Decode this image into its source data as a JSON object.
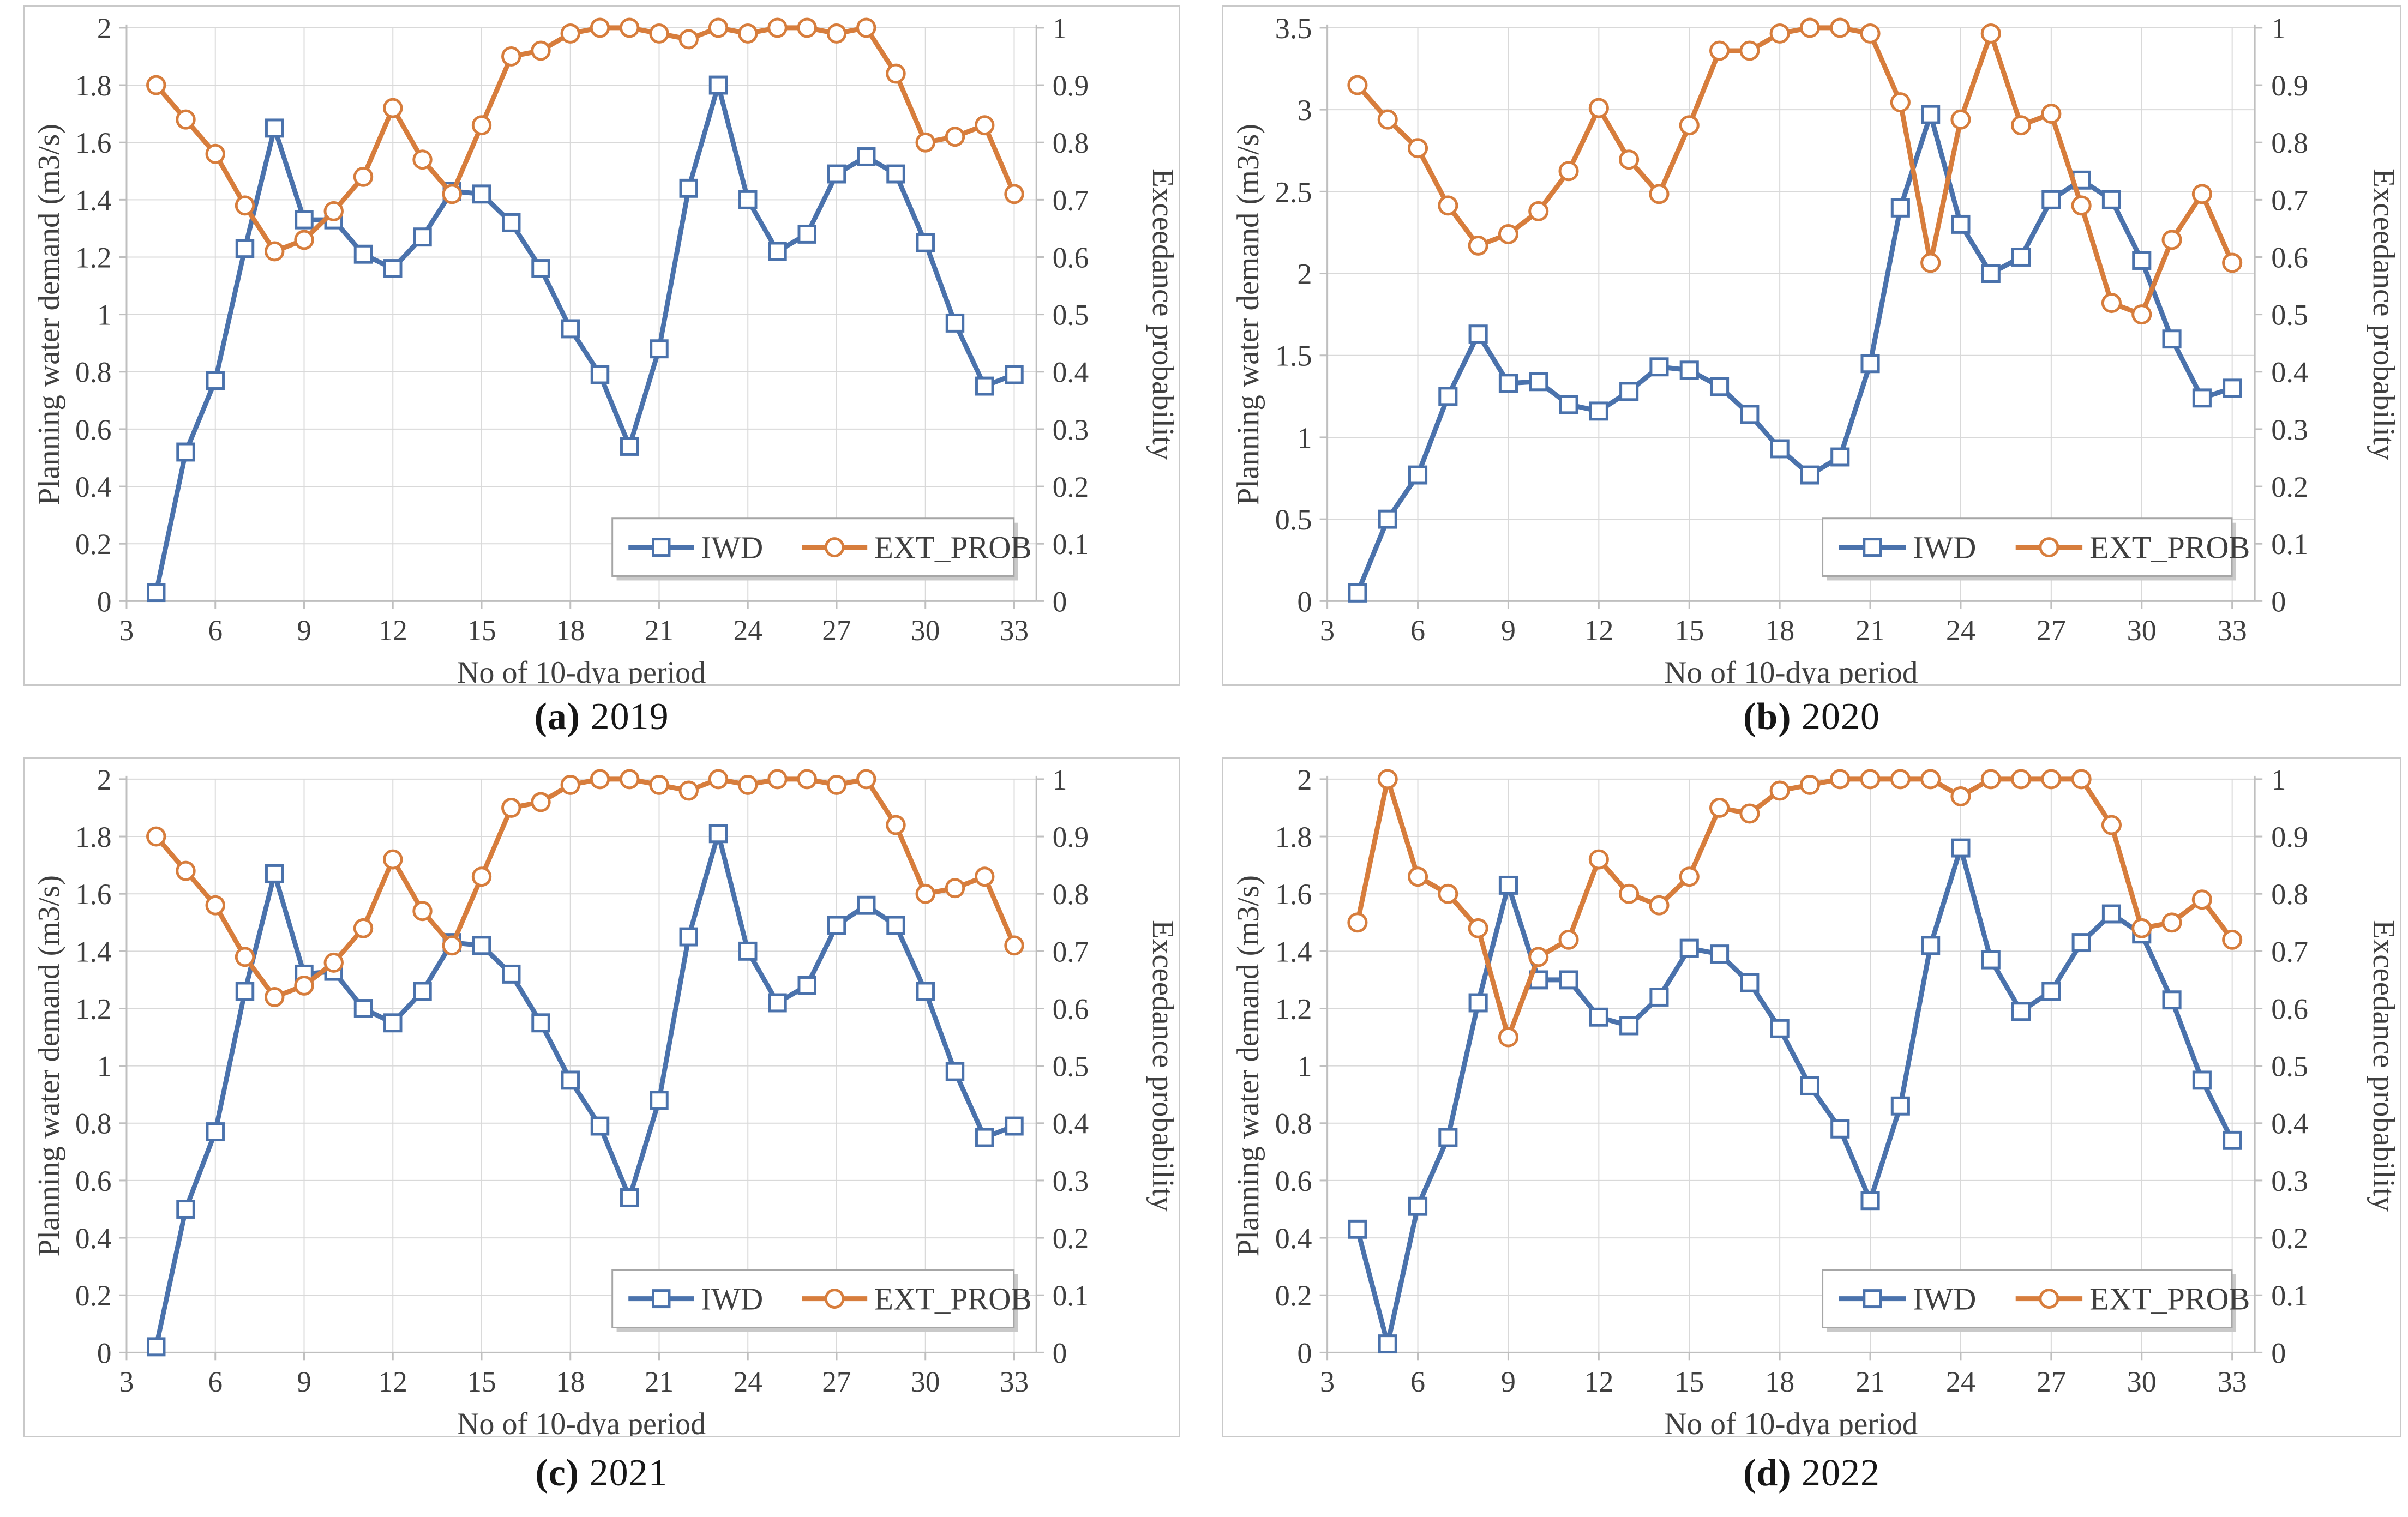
{
  "figure": {
    "background": "#ffffff",
    "grid_color": "#d9d9d9",
    "axis_color": "#bfbfbf",
    "text_color": "#3f3f3f",
    "legend_border_color": "#a6a6a6"
  },
  "chart_data": [
    {
      "id": "a",
      "type": "line",
      "caption_label": "(a)",
      "caption_year": "2019",
      "xlabel": "No of 10-dya period",
      "ylabel_left": "Planning water demand (m3/s)",
      "ylabel_right": "Exceedance probability",
      "x_min": 3,
      "x_max": 33,
      "x_plot_max": 33.75,
      "x_ticks": [
        3,
        6,
        9,
        12,
        15,
        18,
        21,
        24,
        27,
        30,
        33
      ],
      "y_left_max": 2,
      "y_left_ticks": [
        "0",
        "0.2",
        "0.4",
        "0.6",
        "0.8",
        "1",
        "1.2",
        "1.4",
        "1.6",
        "1.8",
        "2"
      ],
      "y_right_max": 1,
      "y_right_ticks": [
        "0",
        "0.1",
        "0.2",
        "0.3",
        "0.4",
        "0.5",
        "0.6",
        "0.7",
        "0.8",
        "0.9",
        "1"
      ],
      "grid": true,
      "legend_position": "inside-bottom-center",
      "x": [
        4,
        5,
        6,
        7,
        8,
        9,
        10,
        11,
        12,
        13,
        14,
        15,
        16,
        17,
        18,
        19,
        20,
        21,
        22,
        23,
        24,
        25,
        26,
        27,
        28,
        29,
        30,
        31,
        32,
        33
      ],
      "series": [
        {
          "name": "IWD",
          "axis": "left",
          "color": "#4a72ac",
          "marker": "square",
          "values": [
            0.03,
            0.52,
            0.77,
            1.23,
            1.65,
            1.33,
            1.33,
            1.21,
            1.16,
            1.27,
            1.43,
            1.42,
            1.32,
            1.16,
            0.95,
            0.79,
            0.54,
            0.88,
            1.44,
            1.8,
            1.4,
            1.22,
            1.28,
            1.49,
            1.55,
            1.49,
            1.25,
            0.97,
            0.75,
            0.79
          ]
        },
        {
          "name": "EXT_PROB",
          "axis": "right",
          "color": "#d77d3c",
          "marker": "circle",
          "values": [
            0.9,
            0.84,
            0.78,
            0.69,
            0.61,
            0.63,
            0.68,
            0.74,
            0.86,
            0.77,
            0.71,
            0.83,
            0.95,
            0.96,
            0.99,
            1.0,
            1.0,
            0.99,
            0.98,
            1.0,
            0.99,
            1.0,
            1.0,
            0.99,
            1.0,
            0.92,
            0.8,
            0.81,
            0.83,
            0.71
          ]
        }
      ]
    },
    {
      "id": "b",
      "type": "line",
      "caption_label": "(b)",
      "caption_year": "2020",
      "xlabel": "No of 10-dya period",
      "ylabel_left": "Planning water demand (m3/s)",
      "ylabel_right": "Exceedance probability",
      "x_min": 3,
      "x_max": 33,
      "x_plot_max": 33.75,
      "x_ticks": [
        3,
        6,
        9,
        12,
        15,
        18,
        21,
        24,
        27,
        30,
        33
      ],
      "y_left_max": 3.5,
      "y_left_ticks": [
        "0",
        "0.5",
        "1",
        "1.5",
        "2",
        "2.5",
        "3",
        "3.5"
      ],
      "y_right_max": 1,
      "y_right_ticks": [
        "0",
        "0.1",
        "0.2",
        "0.3",
        "0.4",
        "0.5",
        "0.6",
        "0.7",
        "0.8",
        "0.9",
        "1"
      ],
      "grid": true,
      "legend_position": "inside-bottom-center",
      "x": [
        4,
        5,
        6,
        7,
        8,
        9,
        10,
        11,
        12,
        13,
        14,
        15,
        16,
        17,
        18,
        19,
        20,
        21,
        22,
        23,
        24,
        25,
        26,
        27,
        28,
        29,
        30,
        31,
        32,
        33
      ],
      "series": [
        {
          "name": "IWD",
          "axis": "left",
          "color": "#4a72ac",
          "marker": "square",
          "values": [
            0.05,
            0.5,
            0.77,
            1.25,
            1.63,
            1.33,
            1.34,
            1.2,
            1.16,
            1.28,
            1.43,
            1.41,
            1.31,
            1.14,
            0.93,
            0.77,
            0.88,
            1.45,
            2.4,
            2.97,
            2.3,
            2.0,
            2.1,
            2.45,
            2.57,
            2.45,
            2.08,
            1.6,
            1.24,
            1.3
          ]
        },
        {
          "name": "EXT_PROB",
          "axis": "right",
          "color": "#d77d3c",
          "marker": "circle",
          "values": [
            0.9,
            0.84,
            0.79,
            0.69,
            0.62,
            0.64,
            0.68,
            0.75,
            0.86,
            0.77,
            0.71,
            0.83,
            0.96,
            0.96,
            0.99,
            1.0,
            1.0,
            0.99,
            0.87,
            0.59,
            0.84,
            0.99,
            0.83,
            0.85,
            0.69,
            0.52,
            0.5,
            0.63,
            0.71,
            0.59
          ]
        }
      ]
    },
    {
      "id": "c",
      "type": "line",
      "caption_label": "(c)",
      "caption_year": "2021",
      "xlabel": "No of 10-dya period",
      "ylabel_left": "Planning water demand (m3/s)",
      "ylabel_right": "Exceedance probability",
      "x_min": 3,
      "x_max": 33,
      "x_plot_max": 33.75,
      "x_ticks": [
        3,
        6,
        9,
        12,
        15,
        18,
        21,
        24,
        27,
        30,
        33
      ],
      "y_left_max": 2,
      "y_left_ticks": [
        "0",
        "0.2",
        "0.4",
        "0.6",
        "0.8",
        "1",
        "1.2",
        "1.4",
        "1.6",
        "1.8",
        "2"
      ],
      "y_right_max": 1,
      "y_right_ticks": [
        "0",
        "0.1",
        "0.2",
        "0.3",
        "0.4",
        "0.5",
        "0.6",
        "0.7",
        "0.8",
        "0.9",
        "1"
      ],
      "grid": true,
      "legend_position": "inside-bottom-center",
      "x": [
        4,
        5,
        6,
        7,
        8,
        9,
        10,
        11,
        12,
        13,
        14,
        15,
        16,
        17,
        18,
        19,
        20,
        21,
        22,
        23,
        24,
        25,
        26,
        27,
        28,
        29,
        30,
        31,
        32,
        33
      ],
      "series": [
        {
          "name": "IWD",
          "axis": "left",
          "color": "#4a72ac",
          "marker": "square",
          "values": [
            0.02,
            0.5,
            0.77,
            1.26,
            1.67,
            1.32,
            1.33,
            1.2,
            1.15,
            1.26,
            1.43,
            1.42,
            1.32,
            1.15,
            0.95,
            0.79,
            0.54,
            0.88,
            1.45,
            1.81,
            1.4,
            1.22,
            1.28,
            1.49,
            1.56,
            1.49,
            1.26,
            0.98,
            0.75,
            0.79
          ]
        },
        {
          "name": "EXT_PROB",
          "axis": "right",
          "color": "#d77d3c",
          "marker": "circle",
          "values": [
            0.9,
            0.84,
            0.78,
            0.69,
            0.62,
            0.64,
            0.68,
            0.74,
            0.86,
            0.77,
            0.71,
            0.83,
            0.95,
            0.96,
            0.99,
            1.0,
            1.0,
            0.99,
            0.98,
            1.0,
            0.99,
            1.0,
            1.0,
            0.99,
            1.0,
            0.92,
            0.8,
            0.81,
            0.83,
            0.71
          ]
        }
      ]
    },
    {
      "id": "d",
      "type": "line",
      "caption_label": "(d)",
      "caption_year": "2022",
      "xlabel": "No of 10-dya period",
      "ylabel_left": "Planning water demand (m3/s)",
      "ylabel_right": "Exceedance probability",
      "x_min": 3,
      "x_max": 33,
      "x_plot_max": 33.75,
      "x_ticks": [
        3,
        6,
        9,
        12,
        15,
        18,
        21,
        24,
        27,
        30,
        33
      ],
      "y_left_max": 2,
      "y_left_ticks": [
        "0",
        "0.2",
        "0.4",
        "0.6",
        "0.8",
        "1",
        "1.2",
        "1.4",
        "1.6",
        "1.8",
        "2"
      ],
      "y_right_max": 1,
      "y_right_ticks": [
        "0",
        "0.1",
        "0.2",
        "0.3",
        "0.4",
        "0.5",
        "0.6",
        "0.7",
        "0.8",
        "0.9",
        "1"
      ],
      "grid": true,
      "legend_position": "inside-bottom-center",
      "x": [
        4,
        5,
        6,
        7,
        8,
        9,
        10,
        11,
        12,
        13,
        14,
        15,
        16,
        17,
        18,
        19,
        20,
        21,
        22,
        23,
        24,
        25,
        26,
        27,
        28,
        29,
        30,
        31,
        32,
        33
      ],
      "series": [
        {
          "name": "IWD",
          "axis": "left",
          "color": "#4a72ac",
          "marker": "square",
          "values": [
            0.43,
            0.03,
            0.51,
            0.75,
            1.22,
            1.63,
            1.3,
            1.3,
            1.17,
            1.14,
            1.24,
            1.41,
            1.39,
            1.29,
            1.13,
            0.93,
            0.78,
            0.53,
            0.86,
            1.42,
            1.76,
            1.37,
            1.19,
            1.26,
            1.43,
            1.53,
            1.46,
            1.23,
            0.95,
            0.74
          ]
        },
        {
          "name": "EXT_PROB",
          "axis": "right",
          "color": "#d77d3c",
          "marker": "circle",
          "values": [
            0.75,
            1.0,
            0.83,
            0.8,
            0.74,
            0.55,
            0.69,
            0.72,
            0.86,
            0.8,
            0.78,
            0.83,
            0.95,
            0.94,
            0.98,
            0.99,
            1.0,
            1.0,
            1.0,
            1.0,
            0.97,
            1.0,
            1.0,
            1.0,
            1.0,
            0.92,
            0.74,
            0.75,
            0.79,
            0.72
          ]
        }
      ]
    }
  ]
}
